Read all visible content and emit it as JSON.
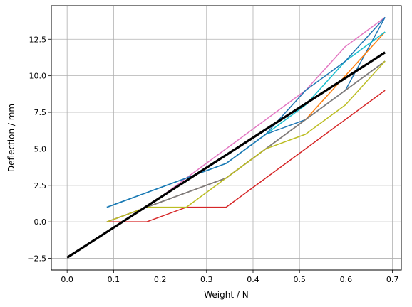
{
  "chart_data": {
    "type": "line",
    "xlabel": "Weight / N",
    "ylabel": "Deflection / mm",
    "xlim": [
      -0.034,
      0.719
    ],
    "ylim": [
      -3.3,
      14.8
    ],
    "xticks": [
      0.0,
      0.1,
      0.2,
      0.3,
      0.4,
      0.5,
      0.6,
      0.7
    ],
    "xtick_labels": [
      "0.0",
      "0.1",
      "0.2",
      "0.3",
      "0.4",
      "0.5",
      "0.6",
      "0.7"
    ],
    "yticks": [
      -2.5,
      0.0,
      2.5,
      5.0,
      7.5,
      10.0,
      12.5
    ],
    "ytick_labels": [
      "−2.5",
      "0.0",
      "2.5",
      "5.0",
      "7.5",
      "10.0",
      "12.5"
    ],
    "grid": true,
    "x": [
      0.0855,
      0.171,
      0.2565,
      0.342,
      0.4275,
      0.513,
      0.5985,
      0.684
    ],
    "series": [
      {
        "color": "#1f77b4",
        "values": [
          1,
          2,
          3,
          4,
          6,
          7,
          9,
          14
        ]
      },
      {
        "color": "#ff7f0e",
        "values": [
          0,
          1,
          2,
          3,
          5,
          7,
          10,
          13
        ]
      },
      {
        "color": "#2ca02c",
        "values": [
          0,
          1,
          2,
          3,
          5,
          7,
          9,
          11
        ]
      },
      {
        "color": "#d62728",
        "values": [
          0,
          0,
          1,
          1,
          3,
          5,
          7,
          9
        ]
      },
      {
        "color": "#9467bd",
        "values": [
          0,
          1,
          2,
          3,
          5,
          7,
          9,
          11
        ]
      },
      {
        "color": "#8c564b",
        "values": [
          0,
          1,
          2,
          3,
          5,
          7,
          9,
          11
        ]
      },
      {
        "color": "#e377c2",
        "values": [
          0,
          1,
          3,
          5,
          7,
          9,
          12,
          14
        ]
      },
      {
        "color": "#7f7f7f",
        "values": [
          0,
          1,
          2,
          3,
          5,
          7,
          9,
          11
        ]
      },
      {
        "color": "#bcbd22",
        "values": [
          0,
          1,
          1,
          3,
          5,
          6,
          8,
          11
        ]
      },
      {
        "color": "#17becf",
        "values": [
          1,
          2,
          3,
          4,
          6,
          8,
          11,
          13
        ]
      },
      {
        "color": "#1f77b4",
        "values": [
          1,
          2,
          3,
          4,
          6,
          9,
          11,
          14
        ]
      }
    ],
    "fit_line": {
      "color": "#000000",
      "x": [
        0.0,
        0.684
      ],
      "y": [
        -2.45,
        11.6
      ]
    }
  }
}
